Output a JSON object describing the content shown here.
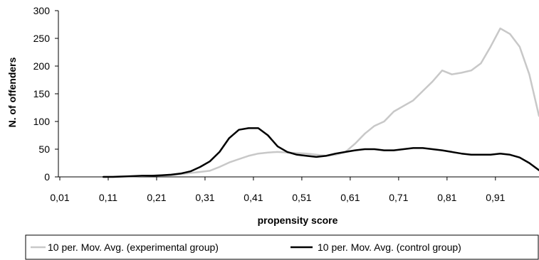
{
  "chart_data": {
    "type": "line",
    "xlabel": "propensity score",
    "ylabel": "N. of offenders",
    "x_tick_labels": [
      "0,01",
      "0,11",
      "0,21",
      "0,31",
      "0,41",
      "0,51",
      "0,61",
      "0,71",
      "0,81",
      "0,91"
    ],
    "x_ticks": [
      0.01,
      0.11,
      0.21,
      0.31,
      0.41,
      0.51,
      0.61,
      0.71,
      0.81,
      0.91
    ],
    "xlim": [
      0.01,
      1.0
    ],
    "y_tick_labels": [
      "0",
      "50",
      "100",
      "150",
      "200",
      "250",
      "300"
    ],
    "y_ticks": [
      0,
      50,
      100,
      150,
      200,
      250,
      300
    ],
    "ylim": [
      0,
      300
    ],
    "legend_position": "bottom",
    "series": [
      {
        "name": "10 per. Mov. Avg. (experimental group)",
        "color": "#c8c8c8",
        "x": [
          0.1,
          0.2,
          0.24,
          0.26,
          0.28,
          0.3,
          0.32,
          0.34,
          0.36,
          0.38,
          0.4,
          0.42,
          0.44,
          0.46,
          0.48,
          0.5,
          0.52,
          0.54,
          0.56,
          0.58,
          0.6,
          0.62,
          0.64,
          0.66,
          0.68,
          0.7,
          0.72,
          0.74,
          0.76,
          0.78,
          0.8,
          0.82,
          0.84,
          0.86,
          0.88,
          0.9,
          0.92,
          0.94,
          0.96,
          0.98,
          1.0
        ],
        "y": [
          0,
          2,
          3,
          5,
          7,
          9,
          11,
          18,
          26,
          32,
          38,
          42,
          44,
          45,
          44,
          43,
          42,
          40,
          38,
          40,
          45,
          60,
          78,
          92,
          100,
          118,
          128,
          138,
          155,
          172,
          192,
          185,
          188,
          192,
          205,
          235,
          268,
          258,
          235,
          185,
          110
        ]
      },
      {
        "name": "10 per. Mov. Avg. (control group)",
        "color": "#000000",
        "x": [
          0.1,
          0.12,
          0.15,
          0.18,
          0.2,
          0.22,
          0.24,
          0.26,
          0.28,
          0.3,
          0.32,
          0.34,
          0.36,
          0.38,
          0.4,
          0.42,
          0.44,
          0.46,
          0.48,
          0.5,
          0.52,
          0.54,
          0.56,
          0.58,
          0.6,
          0.62,
          0.64,
          0.66,
          0.68,
          0.7,
          0.72,
          0.74,
          0.76,
          0.78,
          0.8,
          0.82,
          0.84,
          0.86,
          0.88,
          0.9,
          0.92,
          0.94,
          0.96,
          0.98,
          1.0
        ],
        "y": [
          0,
          0,
          1,
          2,
          2,
          3,
          4,
          6,
          10,
          18,
          28,
          45,
          70,
          85,
          88,
          88,
          75,
          55,
          45,
          40,
          38,
          36,
          38,
          42,
          45,
          48,
          50,
          50,
          48,
          48,
          50,
          52,
          52,
          50,
          48,
          45,
          42,
          40,
          40,
          40,
          42,
          40,
          35,
          25,
          12
        ]
      }
    ]
  }
}
